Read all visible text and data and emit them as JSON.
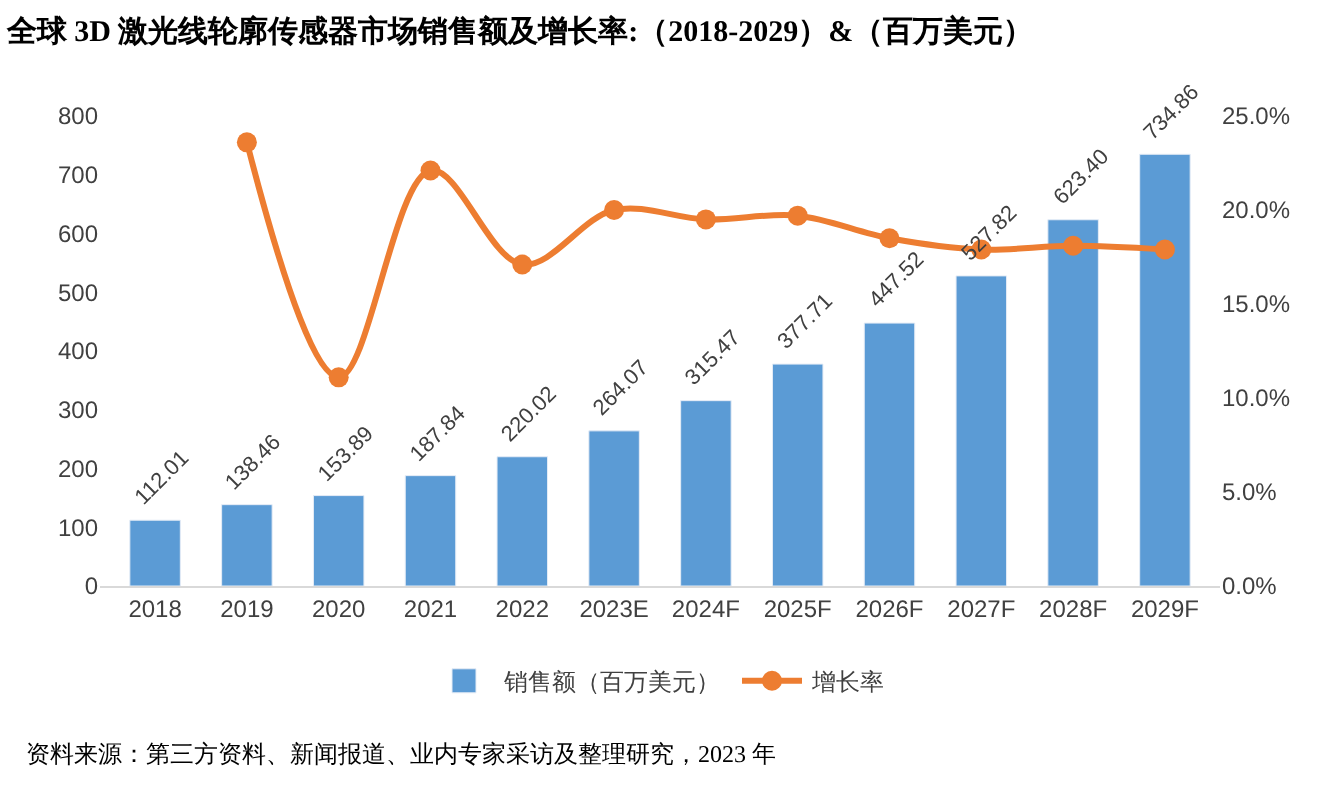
{
  "chart_data": {
    "type": "bar",
    "title": "全球 3D 激光线轮廓传感器市场销售额及增长率:（2018-2029）&（百万美元）",
    "categories": [
      "2018",
      "2019",
      "2020",
      "2021",
      "2022",
      "2023E",
      "2024F",
      "2025F",
      "2026F",
      "2027F",
      "2028F",
      "2029F"
    ],
    "series": [
      {
        "name": "销售额（百万美元）",
        "color": "#5b9bd5",
        "values": [
          112.01,
          138.46,
          153.89,
          187.84,
          220.02,
          264.07,
          315.47,
          377.71,
          447.52,
          527.82,
          623.4,
          734.86
        ],
        "value_labels": [
          "112.01",
          "138.46",
          "153.89",
          "187.84",
          "220.02",
          "264.07",
          "315.47",
          "377.71",
          "447.52",
          "527.82",
          "623.40",
          "734.86"
        ]
      },
      {
        "name": "增长率",
        "type": "line",
        "axis": "y2",
        "color": "#ed7d31",
        "marker": "circle",
        "values": [
          null,
          23.6,
          11.1,
          22.1,
          17.1,
          20.0,
          19.5,
          19.7,
          18.5,
          17.9,
          18.1,
          17.9
        ]
      }
    ],
    "ylim": [
      0,
      800
    ],
    "yticks": [
      0,
      100,
      200,
      300,
      400,
      500,
      600,
      700,
      800
    ],
    "y2lim": [
      0,
      25
    ],
    "y2ticks": [
      {
        "value": 0,
        "label": "0.0%"
      },
      {
        "value": 5,
        "label": "5.0%"
      },
      {
        "value": 10,
        "label": "10.0%"
      },
      {
        "value": 15,
        "label": "15.0%"
      },
      {
        "value": 20,
        "label": "20.0%"
      },
      {
        "value": 25,
        "label": "25.0%"
      }
    ],
    "legend": "bottom",
    "annotations": [
      "资料来源：第三方资料、新闻报道、业内专家采访及整理研究，2023 年"
    ]
  }
}
